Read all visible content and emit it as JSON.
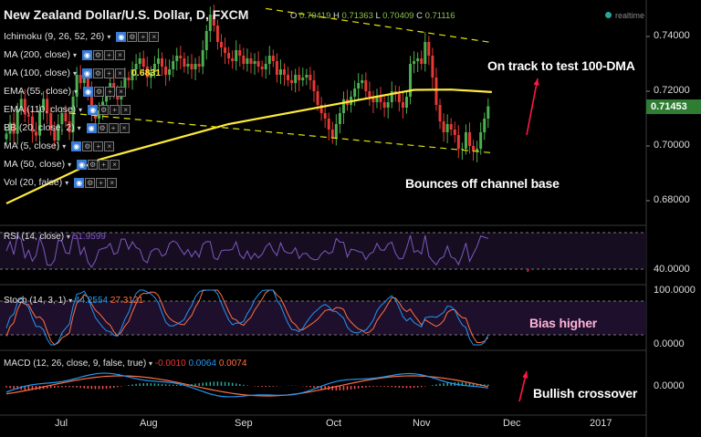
{
  "header": {
    "title": "New Zealand Dollar/U.S. Dollar, D, FXCM",
    "ohlc": [
      {
        "label": "O",
        "value": "0.70419"
      },
      {
        "label": "H",
        "value": "0.71363"
      },
      {
        "label": "L",
        "value": "0.70409"
      },
      {
        "label": "C",
        "value": "0.71116"
      }
    ],
    "realtime": "realtime"
  },
  "indicators": [
    {
      "label": "Ichimoku (9, 26, 52, 26)"
    },
    {
      "label": "MA (200, close)"
    },
    {
      "label": "MA (100, close)",
      "value": "0.6831"
    },
    {
      "label": "EMA (55, close)"
    },
    {
      "label": "EMA (110, close)"
    },
    {
      "label": "BB (20, close, 2)"
    },
    {
      "label": "MA (5, close)"
    },
    {
      "label": "MA (50, close)"
    },
    {
      "label": "Vol (20, false)"
    }
  ],
  "annotations": {
    "target": "On track to test 100-DMA",
    "bounce": "Bounces off channel base",
    "bias": "Bias higher",
    "crossover": "Bullish crossover"
  },
  "panels": {
    "rsi": {
      "title": "RSI (14, close)",
      "value": "51.9599",
      "ylabel": "40.0000"
    },
    "stoch": {
      "title": "Stoch (14, 3, 1)",
      "k": "44.2554",
      "d": "27.3121",
      "ylabels": [
        "100.0000",
        "0.0000"
      ]
    },
    "macd": {
      "title": "MACD (12, 26, close, 9, false, true)",
      "hist": "-0.0010",
      "macd": "0.0064",
      "signal": "0.0074",
      "ylabel": "0.0000"
    }
  },
  "price_axis": {
    "labels": [
      "0.74000",
      "0.72000",
      "0.70000",
      "0.68000"
    ],
    "last": "0.71453"
  },
  "time_axis": {
    "labels": [
      "Jul",
      "Aug",
      "Sep",
      "Oct",
      "Nov",
      "Dec",
      "2017"
    ]
  },
  "colors": {
    "up": "#4caf50",
    "down": "#e53935",
    "ema": "#ffeb3b",
    "rsi": "#7e57c2",
    "stoch_k": "#2196f3",
    "stoch_d": "#ff7043",
    "arrow": "#ff1744"
  },
  "chart_data": {
    "type": "candlestick",
    "symbol": "NZD/USD",
    "interval": "D",
    "ylim": [
      0.67,
      0.75
    ],
    "x_range": [
      "Jun",
      "2017"
    ],
    "close": [
      0.7045,
      0.7085,
      0.7045,
      0.7135,
      0.7172,
      0.7115,
      0.7108,
      0.7052,
      0.7038,
      0.713,
      0.7172,
      0.712,
      0.706,
      0.702,
      0.708,
      0.712,
      0.709,
      0.705,
      0.718,
      0.726,
      0.723,
      0.725,
      0.72,
      0.713,
      0.71,
      0.713,
      0.7162,
      0.719,
      0.723,
      0.72,
      0.717,
      0.721,
      0.725,
      0.724,
      0.728,
      0.73,
      0.732,
      0.729,
      0.725,
      0.727,
      0.73,
      0.732,
      0.729,
      0.726,
      0.728,
      0.731,
      0.733,
      0.732,
      0.729,
      0.73,
      0.728,
      0.73,
      0.729,
      0.735,
      0.742,
      0.748,
      0.744,
      0.738,
      0.736,
      0.734,
      0.732,
      0.731,
      0.735,
      0.733,
      0.73,
      0.732,
      0.73,
      0.731,
      0.729,
      0.728,
      0.73,
      0.733,
      0.731,
      0.726,
      0.728,
      0.726,
      0.724,
      0.723,
      0.726,
      0.724,
      0.725,
      0.726,
      0.724,
      0.72,
      0.715,
      0.712,
      0.71,
      0.706,
      0.703,
      0.708,
      0.712,
      0.717,
      0.715,
      0.718,
      0.721,
      0.723,
      0.724,
      0.72,
      0.718,
      0.716,
      0.718,
      0.716,
      0.714,
      0.716,
      0.72,
      0.719,
      0.716,
      0.714,
      0.718,
      0.73,
      0.731,
      0.732,
      0.73,
      0.738,
      0.733,
      0.725,
      0.715,
      0.709,
      0.705,
      0.708,
      0.706,
      0.704,
      0.699,
      0.699,
      0.705,
      0.7,
      0.698,
      0.699,
      0.705,
      0.71,
      0.7145
    ],
    "series": [
      {
        "name": "EMA (110, close)",
        "x": [
          0,
          25,
          60,
          95,
          110,
          120,
          131
        ],
        "values": [
          0.679,
          0.695,
          0.708,
          0.7168,
          0.7205,
          0.7206,
          0.7197
        ]
      },
      {
        "name": "RSI (14, close)",
        "last": 51.9599
      },
      {
        "name": "Stoch %K",
        "last": 44.2554
      },
      {
        "name": "Stoch %D",
        "last": 27.3121
      },
      {
        "name": "MACD",
        "last": 0.0064
      },
      {
        "name": "Signal",
        "last": 0.0074
      },
      {
        "name": "Histogram",
        "last": -0.001
      }
    ],
    "channel": {
      "upper": [
        [
          70,
          0.7502
        ],
        [
          131,
          0.7378
        ]
      ],
      "lower": [
        [
          17,
          0.712
        ],
        [
          131,
          0.6975
        ]
      ]
    },
    "xticks": [
      {
        "label": "Jul",
        "x": 12
      },
      {
        "label": "Aug",
        "x": 34
      },
      {
        "label": "Sep",
        "x": 56
      },
      {
        "label": "Oct",
        "x": 78
      },
      {
        "label": "Nov",
        "x": 99
      },
      {
        "label": "Dec",
        "x": 120
      },
      {
        "label": "2017",
        "x": 142
      }
    ]
  }
}
